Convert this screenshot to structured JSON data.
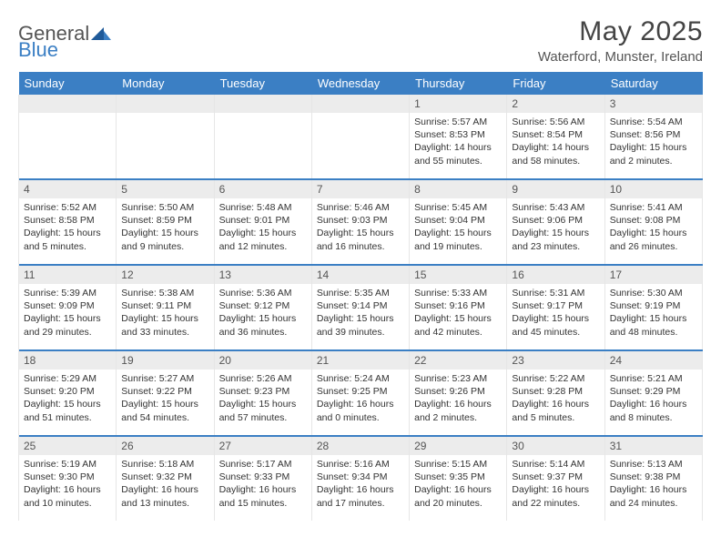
{
  "logo": {
    "text1": "General",
    "text2": "Blue"
  },
  "title": {
    "month_year": "May 2025",
    "location": "Waterford, Munster, Ireland"
  },
  "colors": {
    "header_bg": "#3b7fc4",
    "header_text": "#ffffff",
    "date_bar_bg": "#ececec",
    "accent": "#3b7fc4"
  },
  "day_headers": [
    "Sunday",
    "Monday",
    "Tuesday",
    "Wednesday",
    "Thursday",
    "Friday",
    "Saturday"
  ],
  "weeks": [
    [
      null,
      null,
      null,
      null,
      {
        "d": "1",
        "sr": "5:57 AM",
        "ss": "8:53 PM",
        "dl": "14 hours and 55 minutes."
      },
      {
        "d": "2",
        "sr": "5:56 AM",
        "ss": "8:54 PM",
        "dl": "14 hours and 58 minutes."
      },
      {
        "d": "3",
        "sr": "5:54 AM",
        "ss": "8:56 PM",
        "dl": "15 hours and 2 minutes."
      }
    ],
    [
      {
        "d": "4",
        "sr": "5:52 AM",
        "ss": "8:58 PM",
        "dl": "15 hours and 5 minutes."
      },
      {
        "d": "5",
        "sr": "5:50 AM",
        "ss": "8:59 PM",
        "dl": "15 hours and 9 minutes."
      },
      {
        "d": "6",
        "sr": "5:48 AM",
        "ss": "9:01 PM",
        "dl": "15 hours and 12 minutes."
      },
      {
        "d": "7",
        "sr": "5:46 AM",
        "ss": "9:03 PM",
        "dl": "15 hours and 16 minutes."
      },
      {
        "d": "8",
        "sr": "5:45 AM",
        "ss": "9:04 PM",
        "dl": "15 hours and 19 minutes."
      },
      {
        "d": "9",
        "sr": "5:43 AM",
        "ss": "9:06 PM",
        "dl": "15 hours and 23 minutes."
      },
      {
        "d": "10",
        "sr": "5:41 AM",
        "ss": "9:08 PM",
        "dl": "15 hours and 26 minutes."
      }
    ],
    [
      {
        "d": "11",
        "sr": "5:39 AM",
        "ss": "9:09 PM",
        "dl": "15 hours and 29 minutes."
      },
      {
        "d": "12",
        "sr": "5:38 AM",
        "ss": "9:11 PM",
        "dl": "15 hours and 33 minutes."
      },
      {
        "d": "13",
        "sr": "5:36 AM",
        "ss": "9:12 PM",
        "dl": "15 hours and 36 minutes."
      },
      {
        "d": "14",
        "sr": "5:35 AM",
        "ss": "9:14 PM",
        "dl": "15 hours and 39 minutes."
      },
      {
        "d": "15",
        "sr": "5:33 AM",
        "ss": "9:16 PM",
        "dl": "15 hours and 42 minutes."
      },
      {
        "d": "16",
        "sr": "5:31 AM",
        "ss": "9:17 PM",
        "dl": "15 hours and 45 minutes."
      },
      {
        "d": "17",
        "sr": "5:30 AM",
        "ss": "9:19 PM",
        "dl": "15 hours and 48 minutes."
      }
    ],
    [
      {
        "d": "18",
        "sr": "5:29 AM",
        "ss": "9:20 PM",
        "dl": "15 hours and 51 minutes."
      },
      {
        "d": "19",
        "sr": "5:27 AM",
        "ss": "9:22 PM",
        "dl": "15 hours and 54 minutes."
      },
      {
        "d": "20",
        "sr": "5:26 AM",
        "ss": "9:23 PM",
        "dl": "15 hours and 57 minutes."
      },
      {
        "d": "21",
        "sr": "5:24 AM",
        "ss": "9:25 PM",
        "dl": "16 hours and 0 minutes."
      },
      {
        "d": "22",
        "sr": "5:23 AM",
        "ss": "9:26 PM",
        "dl": "16 hours and 2 minutes."
      },
      {
        "d": "23",
        "sr": "5:22 AM",
        "ss": "9:28 PM",
        "dl": "16 hours and 5 minutes."
      },
      {
        "d": "24",
        "sr": "5:21 AM",
        "ss": "9:29 PM",
        "dl": "16 hours and 8 minutes."
      }
    ],
    [
      {
        "d": "25",
        "sr": "5:19 AM",
        "ss": "9:30 PM",
        "dl": "16 hours and 10 minutes."
      },
      {
        "d": "26",
        "sr": "5:18 AM",
        "ss": "9:32 PM",
        "dl": "16 hours and 13 minutes."
      },
      {
        "d": "27",
        "sr": "5:17 AM",
        "ss": "9:33 PM",
        "dl": "16 hours and 15 minutes."
      },
      {
        "d": "28",
        "sr": "5:16 AM",
        "ss": "9:34 PM",
        "dl": "16 hours and 17 minutes."
      },
      {
        "d": "29",
        "sr": "5:15 AM",
        "ss": "9:35 PM",
        "dl": "16 hours and 20 minutes."
      },
      {
        "d": "30",
        "sr": "5:14 AM",
        "ss": "9:37 PM",
        "dl": "16 hours and 22 minutes."
      },
      {
        "d": "31",
        "sr": "5:13 AM",
        "ss": "9:38 PM",
        "dl": "16 hours and 24 minutes."
      }
    ]
  ],
  "labels": {
    "sunrise": "Sunrise:",
    "sunset": "Sunset:",
    "daylight": "Daylight:"
  }
}
